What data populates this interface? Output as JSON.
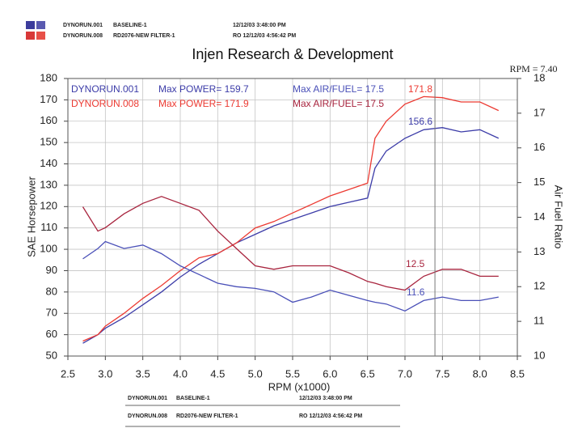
{
  "chart_data": {
    "type": "line",
    "header": [
      {
        "run": "DYNORUN.001",
        "desc": "BASELINE-1",
        "date": "12/12/03 3:48:00 PM"
      },
      {
        "run": "DYNORUN.008",
        "desc": "RD2076-NEW FILTER-1",
        "date": "RO 12/12/03 4:56:42 PM"
      }
    ],
    "title": "Injen Research & Development",
    "cursor_label": "RPM = 7.40",
    "cursor": 7.4,
    "run_labels": [
      {
        "power": "Max POWER= 159.7",
        "afr": "Max AIR/FUEL= 17.5"
      },
      {
        "power": "Max POWER= 171.9",
        "afr": "Max AIR/FUEL= 17.5"
      }
    ],
    "annotations": [
      "171.8",
      "156.6",
      "12.5",
      "11.6"
    ],
    "xlabel": "RPM (x1000)",
    "ylabel": "SAE Horsepower",
    "y2label": "Air Fuel Ratio",
    "x": [
      2.7,
      2.9,
      3.0,
      3.25,
      3.5,
      3.75,
      4.0,
      4.25,
      4.5,
      4.75,
      5.0,
      5.25,
      5.5,
      5.75,
      6.0,
      6.25,
      6.5,
      6.6,
      6.75,
      7.0,
      7.25,
      7.5,
      7.75,
      8.0,
      8.25
    ],
    "series": [
      {
        "name": "DYNORUN.001",
        "color": "#3c3ca8",
        "values": [
          56,
          60,
          63,
          68,
          74,
          80,
          87,
          93,
          98,
          103,
          107,
          111,
          114,
          117,
          120,
          122,
          124,
          138,
          146,
          152,
          156,
          157,
          155,
          156,
          152
        ]
      },
      {
        "name": "DYNORUN.008",
        "color": "#ec3a32",
        "values": [
          57,
          60,
          64,
          70,
          77,
          83,
          90,
          96,
          98,
          103,
          110,
          113,
          117,
          121,
          125,
          128,
          131,
          152,
          160,
          168,
          171.5,
          171,
          169,
          169,
          165
        ]
      },
      {
        "color": "#4a50b8",
        "axis": "y2",
        "values": [
          12.8,
          13.1,
          13.3,
          13.1,
          13.2,
          12.95,
          12.6,
          12.35,
          12.1,
          12.0,
          11.95,
          11.85,
          11.55,
          11.7,
          11.9,
          11.75,
          11.6,
          11.55,
          11.5,
          11.3,
          11.6,
          11.7,
          11.6,
          11.6,
          11.7
        ]
      },
      {
        "color": "#a8243e",
        "axis": "y2",
        "values": [
          14.3,
          13.6,
          13.7,
          14.1,
          14.4,
          14.6,
          14.4,
          14.2,
          13.6,
          13.1,
          12.6,
          12.5,
          12.6,
          12.6,
          12.6,
          12.4,
          12.15,
          12.1,
          12.0,
          11.9,
          12.3,
          12.5,
          12.5,
          12.3,
          12.3
        ]
      }
    ],
    "xlim": [
      2.5,
      8.5
    ],
    "xticks": [
      2.5,
      {
        "value": 3,
        "label": "3.0"
      },
      3.5,
      {
        "value": 4,
        "label": "4.0"
      },
      4.5,
      {
        "value": 5,
        "label": "5.0"
      },
      5.5,
      {
        "value": 6,
        "label": "6.0"
      },
      6.5,
      {
        "value": 7,
        "label": "7.0"
      },
      7.5,
      {
        "value": 8,
        "label": "8.0"
      },
      8.5
    ],
    "ylim": [
      50,
      180
    ],
    "yticks": [
      50,
      60,
      70,
      80,
      90,
      100,
      110,
      120,
      130,
      140,
      150,
      160,
      170,
      180
    ],
    "y2lim": [
      10,
      18
    ],
    "y2ticks": [
      10,
      11,
      12,
      13,
      14,
      15,
      16,
      17,
      18
    ],
    "grid": true
  }
}
